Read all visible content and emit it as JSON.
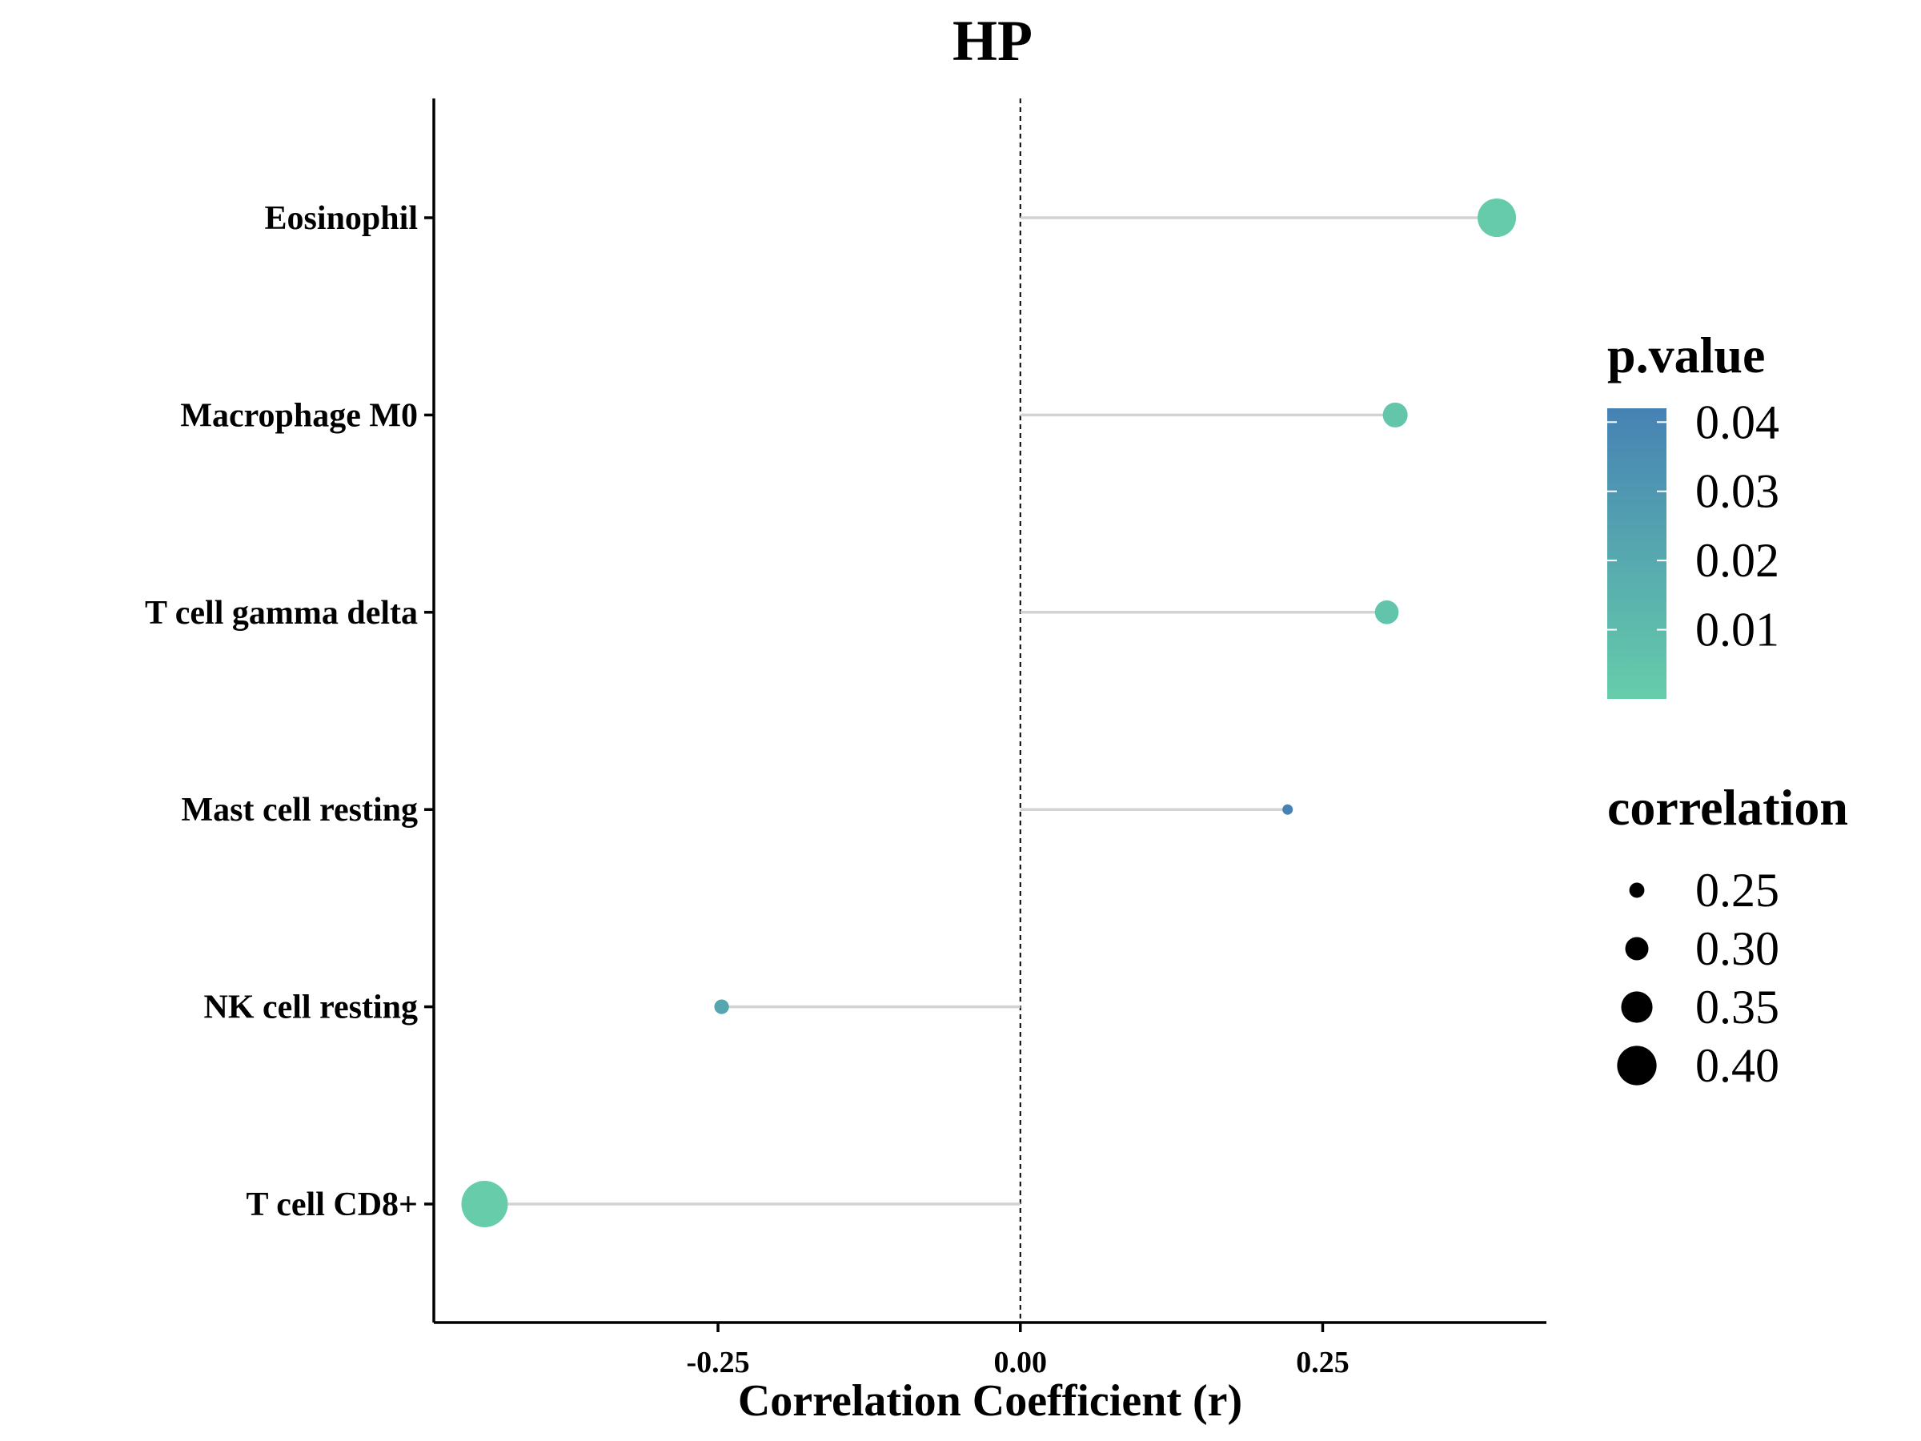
{
  "chart_data": {
    "type": "scatter",
    "subtype": "lollipop",
    "title": "HP",
    "xlabel": "Correlation Coefficient (r)",
    "ylabel": "",
    "xlim": [
      -0.485,
      0.435
    ],
    "x_ticks": [
      -0.25,
      0.0,
      0.25
    ],
    "x_tick_labels": [
      "-0.25",
      "0.00",
      "0.25"
    ],
    "reference_line": 0,
    "grid": false,
    "categories": [
      "Eosinophil",
      "Macrophage M0",
      "T cell gamma delta",
      "Mast cell resting",
      "NK cell resting",
      "T cell CD8+"
    ],
    "points": [
      {
        "label": "Eosinophil",
        "r": 0.394,
        "p_value": 0.001
      },
      {
        "label": "Macrophage M0",
        "r": 0.31,
        "p_value": 0.004
      },
      {
        "label": "T cell gamma delta",
        "r": 0.303,
        "p_value": 0.005
      },
      {
        "label": "Mast cell resting",
        "r": 0.221,
        "p_value": 0.042
      },
      {
        "label": "NK cell resting",
        "r": -0.247,
        "p_value": 0.022
      },
      {
        "label": "T cell CD8+",
        "r": -0.443,
        "p_value": 0.0005
      }
    ],
    "stem_color": "#d3d3d3",
    "legend": {
      "placement": "right",
      "color": {
        "title": "p.value",
        "ticks": [
          0.04,
          0.03,
          0.02,
          0.01
        ],
        "tick_labels": [
          "0.04",
          "0.03",
          "0.02",
          "0.01"
        ],
        "range": [
          0.0,
          0.042
        ],
        "low_color": "#66CDAA",
        "high_color": "#4682B4"
      },
      "size": {
        "title": "correlation",
        "values": [
          0.25,
          0.3,
          0.35,
          0.4
        ],
        "labels": [
          "0.25",
          "0.30",
          "0.35",
          "0.40"
        ]
      }
    }
  }
}
